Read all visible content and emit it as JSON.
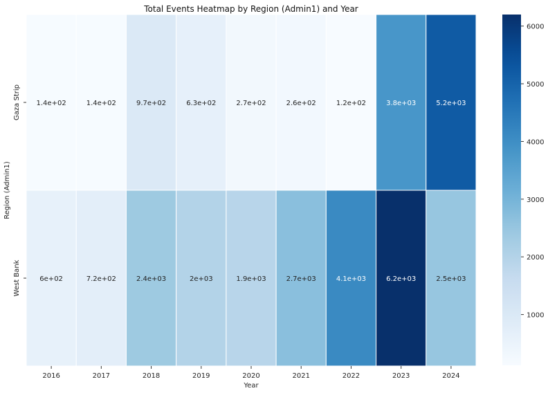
{
  "chart_data": {
    "type": "heatmap",
    "title": "Total Events Heatmap by Region (Admin1) and Year",
    "xlabel": "Year",
    "ylabel": "Region (Admin1)",
    "x_categories": [
      "2016",
      "2017",
      "2018",
      "2019",
      "2020",
      "2021",
      "2022",
      "2023",
      "2024"
    ],
    "y_categories": [
      "Gaza Strip",
      "West Bank"
    ],
    "values": [
      [
        140,
        140,
        970,
        630,
        270,
        260,
        120,
        3800,
        5200
      ],
      [
        600,
        720,
        2400,
        2000,
        1900,
        2700,
        4100,
        6200,
        2500
      ]
    ],
    "cell_labels": [
      [
        "1.4e+02",
        "1.4e+02",
        "9.7e+02",
        "6.3e+02",
        "2.7e+02",
        "2.6e+02",
        "1.2e+02",
        "3.8e+03",
        "5.2e+03"
      ],
      [
        "6e+02",
        "7.2e+02",
        "2.4e+03",
        "2e+03",
        "1.9e+03",
        "2.7e+03",
        "4.1e+03",
        "6.2e+03",
        "2.5e+03"
      ]
    ],
    "colorbar": {
      "colormap": "Blues",
      "range": [
        120,
        6200
      ],
      "ticks": [
        "1000",
        "2000",
        "3000",
        "4000",
        "5000",
        "6000"
      ]
    }
  }
}
